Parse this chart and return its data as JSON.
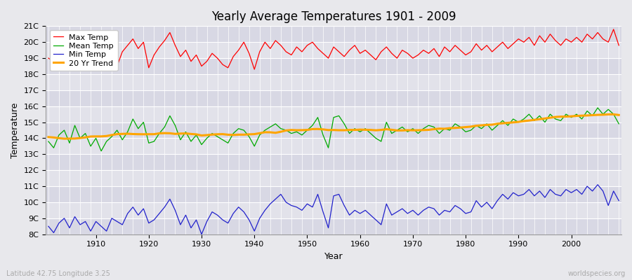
{
  "title": "Yearly Average Temperatures 1901 - 2009",
  "xlabel": "Year",
  "ylabel": "Temperature",
  "lat_lon_label": "Latitude 42.75 Longitude 3.25",
  "watermark": "worldspecies.org",
  "start_year": 1901,
  "end_year": 2009,
  "background_color": "#e8e8ec",
  "plot_bg_color_light": "#e2e2ea",
  "plot_bg_color_dark": "#d8d8e4",
  "grid_color": "#ffffff",
  "max_temp_color": "#ff0000",
  "mean_temp_color": "#00aa00",
  "min_temp_color": "#2222cc",
  "trend_color": "#ffa500",
  "ylim_min": 8,
  "ylim_max": 21,
  "yticks": [
    8,
    9,
    10,
    11,
    12,
    13,
    14,
    15,
    16,
    17,
    18,
    19,
    20,
    21
  ],
  "ytick_labels": [
    "8C",
    "9C",
    "10C",
    "11C",
    "12C",
    "13C",
    "14C",
    "15C",
    "16C",
    "17C",
    "18C",
    "19C",
    "20C",
    "21C"
  ],
  "xticks": [
    1910,
    1920,
    1930,
    1940,
    1950,
    1960,
    1970,
    1980,
    1990,
    2000
  ],
  "legend_labels": [
    "Max Temp",
    "Mean Temp",
    "Min Temp",
    "20 Yr Trend"
  ]
}
